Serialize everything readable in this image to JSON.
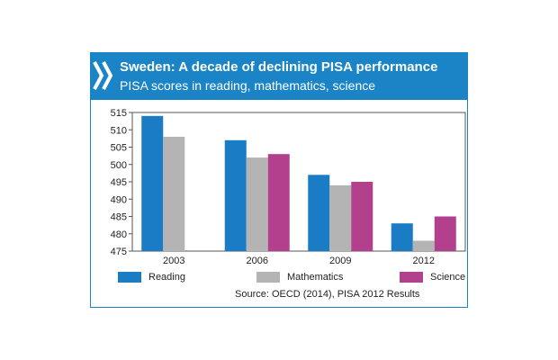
{
  "header": {
    "title": "Sweden: A decade of declining PISA performance",
    "subtitle": "PISA scores in reading, mathematics, science"
  },
  "chart_data": {
    "type": "bar",
    "categories": [
      "2003",
      "2006",
      "2009",
      "2012"
    ],
    "series": [
      {
        "name": "Reading",
        "color": "#1a7cc4",
        "values": [
          514,
          507,
          497,
          483
        ]
      },
      {
        "name": "Mathematics",
        "color": "#b4b4b4",
        "values": [
          508,
          502,
          494,
          478
        ]
      },
      {
        "name": "Science",
        "color": "#b2408c",
        "values": [
          null,
          503,
          495,
          485
        ]
      }
    ],
    "ylim": [
      475,
      515
    ],
    "yticks": [
      475,
      480,
      485,
      490,
      495,
      500,
      505,
      510,
      515
    ],
    "legend_position": "bottom",
    "grid": false
  },
  "source": "Source: OECD (2014), PISA 2012 Results"
}
